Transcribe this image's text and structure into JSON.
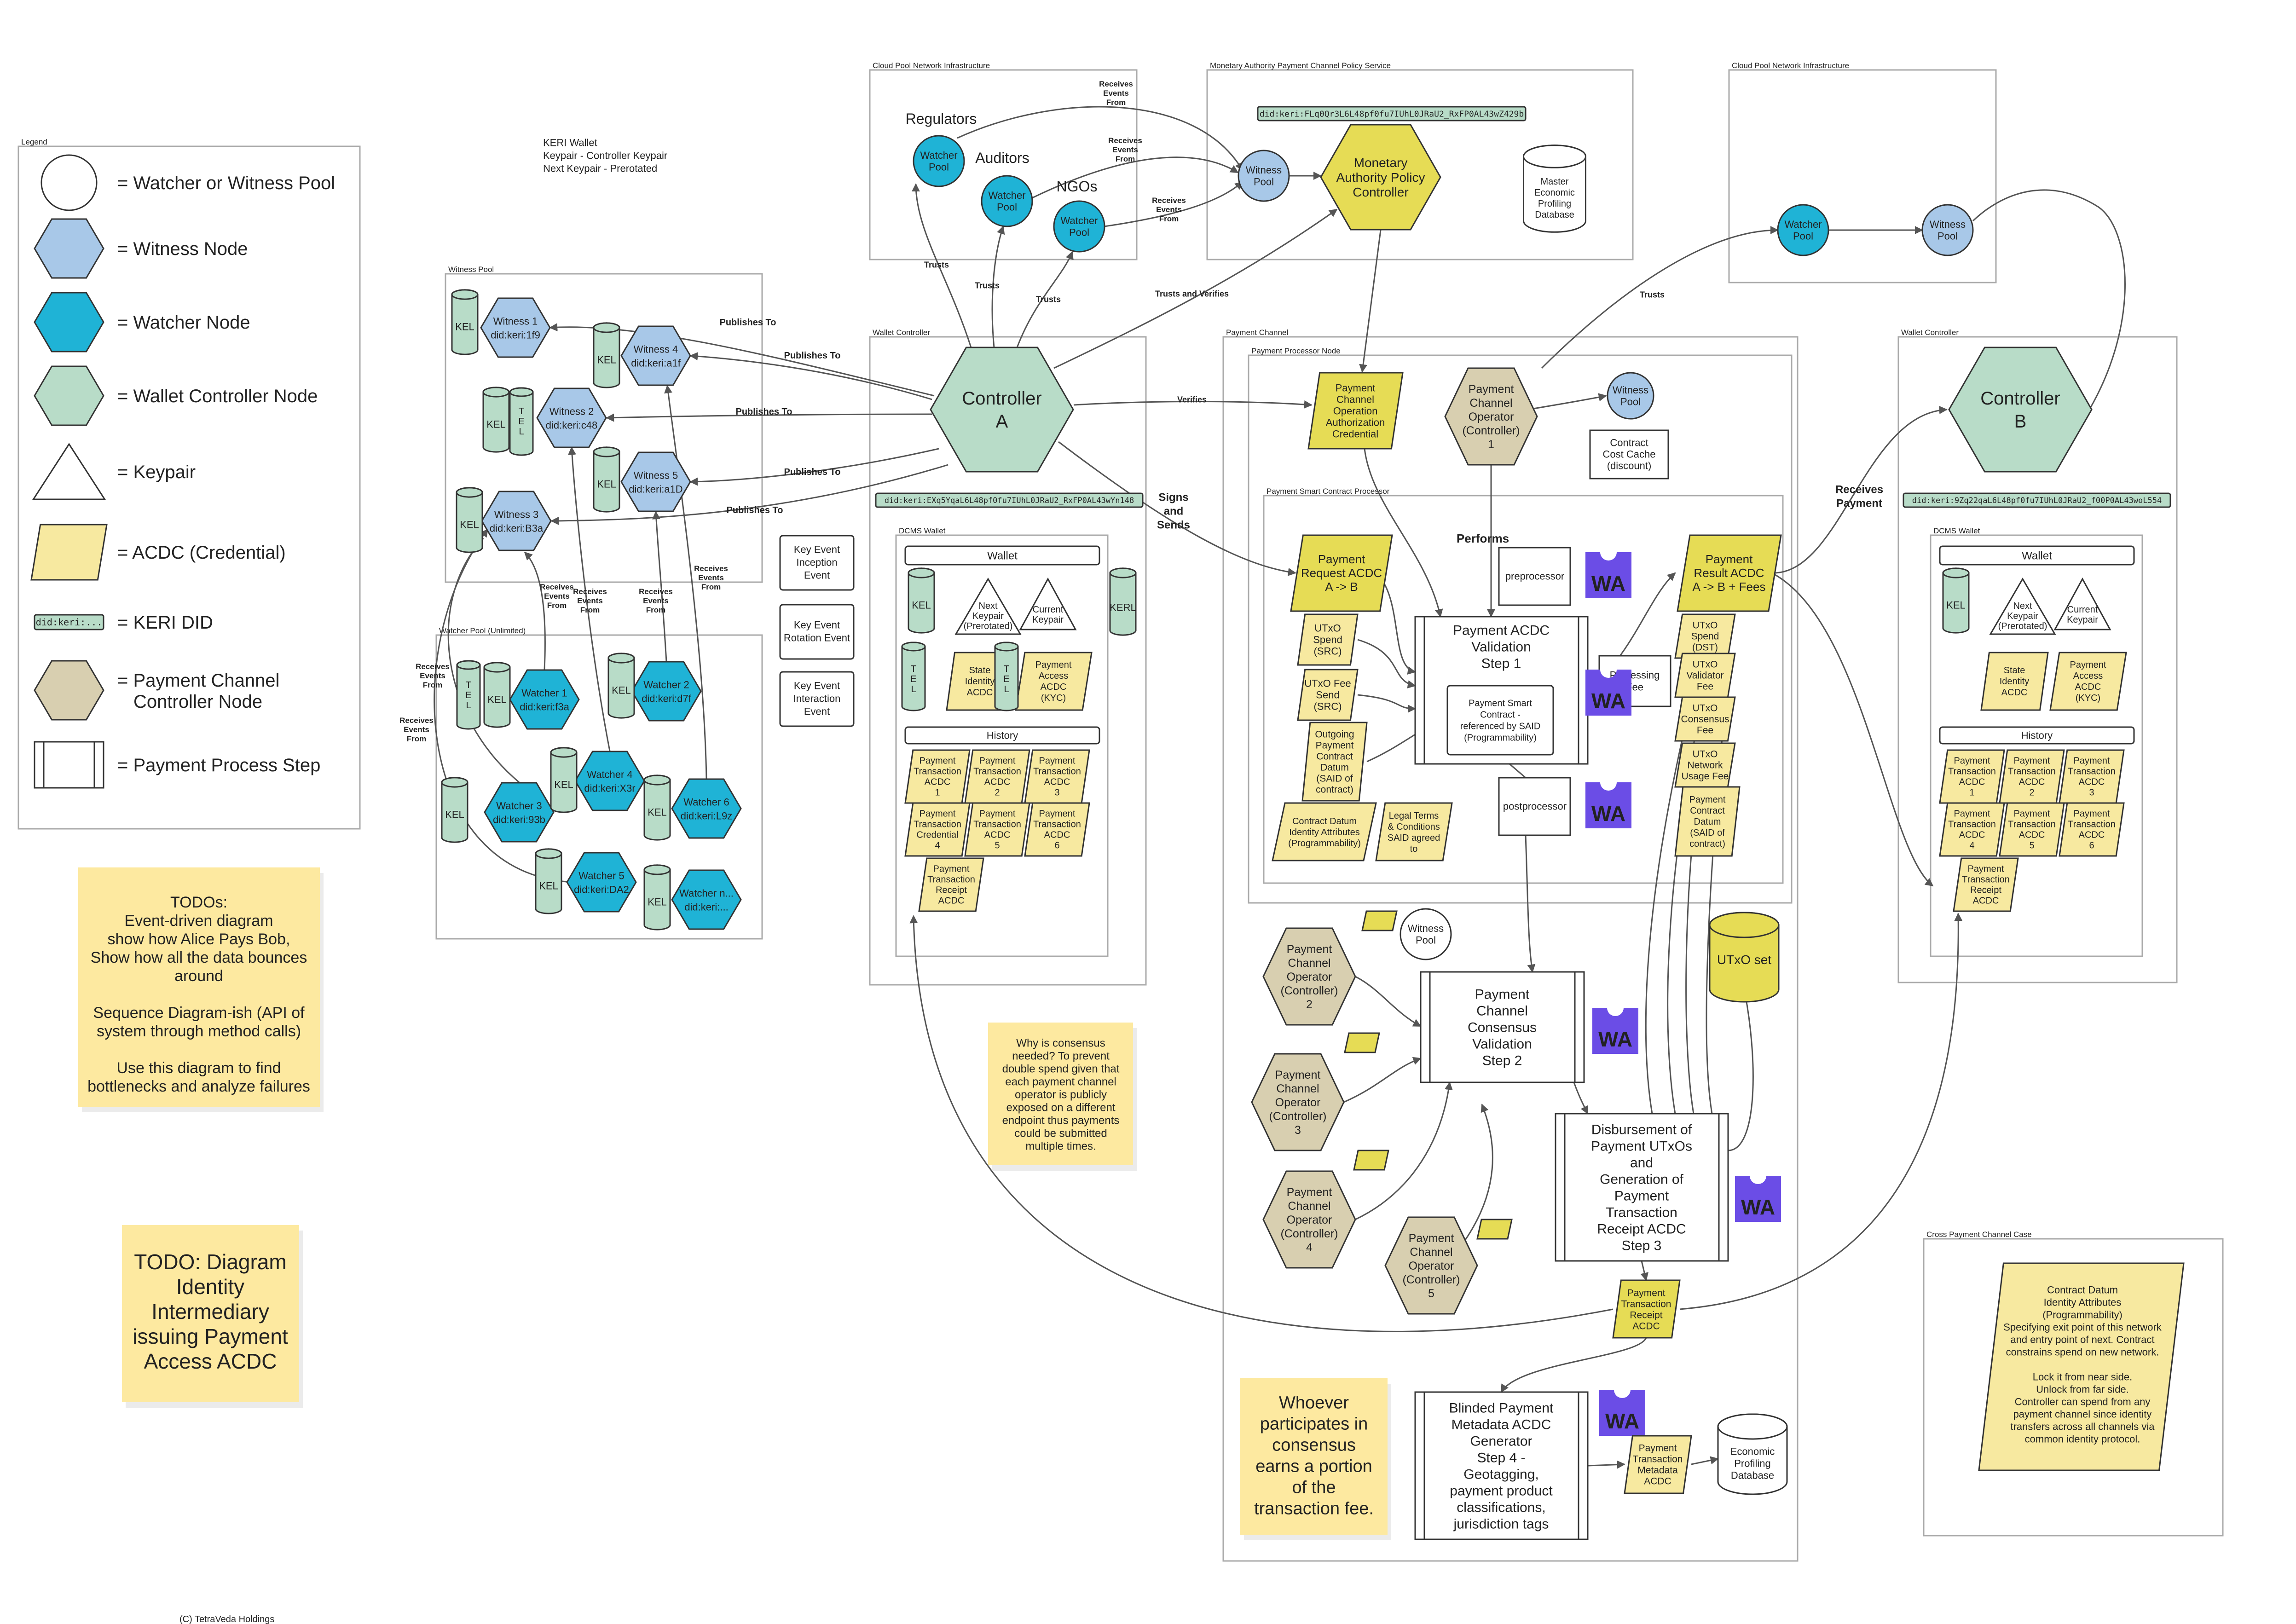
{
  "legend": {
    "title": "Legend",
    "items": [
      {
        "shape": "circle",
        "label": "= Watcher or Witness Pool"
      },
      {
        "shape": "hex-lightblue",
        "label": "= Witness Node"
      },
      {
        "shape": "hex-blue",
        "label": "= Watcher Node"
      },
      {
        "shape": "hex-green",
        "label": "= Wallet Controller Node"
      },
      {
        "shape": "triangle",
        "label": "= Keypair"
      },
      {
        "shape": "parallelogram",
        "label": "= ACDC (Credential)"
      },
      {
        "shape": "did",
        "label": "= KERI DID",
        "sample": "did:keri:..."
      },
      {
        "shape": "hex-tan",
        "label": "= Payment Channel",
        "label2": "Controller Node"
      },
      {
        "shape": "process",
        "label": "= Payment Process Step"
      }
    ]
  },
  "keri_wallet_note": [
    "KERI Wallet",
    "Keypair - Controller Keypair",
    "Next Keypair - Prerotated"
  ],
  "todo_notes": {
    "event_driven": [
      "TODOs:",
      "Event-driven diagram",
      "show how Alice Pays Bob,",
      "Show how all the data bounces",
      "around",
      "",
      "Sequence Diagram-ish (API of",
      "system through method calls)",
      "",
      "Use this diagram to find",
      "bottlenecks and analyze failures"
    ],
    "identity": [
      "TODO: Diagram",
      "Identity",
      "Intermediary",
      "issuing Payment",
      "Access ACDC"
    ],
    "consensus": [
      "Why is consensus",
      "needed? To prevent",
      "double spend given that",
      "each payment channel",
      "operator is publicly",
      "exposed on a different",
      "endpoint thus payments",
      "could be submitted",
      "multiple times."
    ],
    "whoever": [
      "Whoever",
      "participates in",
      "consensus",
      "earns a portion",
      "of the",
      "transaction fee."
    ]
  },
  "copyright": "(C) TetraVeda Holdings",
  "containers": {
    "witness_pool": "Witness Pool",
    "watcher_pool": "Watcher Pool (Unlimited)",
    "cloud_pool_left": "Cloud Pool Network Infrastructure",
    "monetary_authority": "Monetary Authority Payment Channel Policy Service",
    "cloud_pool_right": "Cloud Pool Network Infrastructure",
    "wallet_controller_a": "Wallet Controller",
    "dcms_wallet_a": "DCMS Wallet",
    "payment_channel": "Payment Channel",
    "payment_processor_node": "Payment Processor Node",
    "smart_contract_processor": "Payment Smart Contract Processor",
    "wallet_controller_b": "Wallet Controller",
    "dcms_wallet_b": "DCMS Wallet",
    "cross_payment": "Cross Payment Channel Case"
  },
  "witnesses": [
    {
      "name": "Witness 1",
      "did": "did:keri:1f9"
    },
    {
      "name": "Witness 4",
      "did": "did:keri:a1f"
    },
    {
      "name": "Witness 2",
      "did": "did:keri:c48"
    },
    {
      "name": "Witness 5",
      "did": "did:keri:a1D"
    },
    {
      "name": "Witness 3",
      "did": "did:keri:B3a"
    }
  ],
  "watchers": [
    {
      "name": "Watcher 1",
      "did": "did:keri:f3a"
    },
    {
      "name": "Watcher 2",
      "did": "did:keri:d7f"
    },
    {
      "name": "Watcher 4",
      "did": "did:keri:X3r"
    },
    {
      "name": "Watcher 6",
      "did": "did:keri:L9z"
    },
    {
      "name": "Watcher 3",
      "did": "did:keri:93b"
    },
    {
      "name": "Watcher 5",
      "did": "did:keri:DA2"
    },
    {
      "name": "Watcher n...",
      "did": "did:keri:..."
    }
  ],
  "cloud_left": {
    "regulators": "Regulators",
    "auditors": "Auditors",
    "ngos": "NGOs",
    "watcher_pool": [
      "Watcher",
      "Pool"
    ]
  },
  "monetary": {
    "did": "did:keri:FLq0Qr3L6L48pf0fu7IUhL0JRaU2_RxFP0AL43wZ429b",
    "witness_pool": [
      "Witness",
      "Pool"
    ],
    "controller": [
      "Monetary",
      "Authority Policy",
      "Controller"
    ],
    "database": [
      "Master",
      "Economic",
      "Profiling",
      "Database"
    ]
  },
  "cloud_right": {
    "watcher_pool": [
      "Watcher",
      "Pool"
    ],
    "witness_pool": [
      "Witness",
      "Pool"
    ]
  },
  "controller_a": {
    "label": [
      "Controller",
      "A"
    ],
    "did": "did:keri:EXq5YqaL6L48pf0fu7IUhL0JRaU2_RxFP0AL43wYn148"
  },
  "controller_b": {
    "label": [
      "Controller",
      "B"
    ],
    "did": "did:keri:9Zq22qaL6L48pf0fu7IUhL0JRaU2_f00P0AL43woL554"
  },
  "events": [
    [
      "Key Event",
      "Inception",
      "Event"
    ],
    [
      "Key Event",
      "Rotation Event"
    ],
    [
      "Key Event",
      "Interaction",
      "Event"
    ]
  ],
  "wallet": {
    "title": "Wallet",
    "kel": "KEL",
    "kerl": "KERL",
    "tel": [
      "T",
      "E",
      "L"
    ],
    "next_keypair": [
      "Next",
      "Keypair",
      "(Prerotated)"
    ],
    "current_keypair": [
      "Current",
      "Keypair"
    ],
    "state_identity": [
      "State",
      "Identity",
      "ACDC"
    ],
    "payment_access": [
      "Payment",
      "Access",
      "ACDC",
      "(KYC)"
    ],
    "history": "History",
    "history_items": [
      [
        "Payment",
        "Transaction",
        "ACDC",
        "1"
      ],
      [
        "Payment",
        "Transaction",
        "ACDC",
        "2"
      ],
      [
        "Payment",
        "Transaction",
        "ACDC",
        "3"
      ],
      [
        "Payment",
        "Transaction",
        "Credential",
        "4"
      ],
      [
        "Payment",
        "Transaction",
        "ACDC",
        "5"
      ],
      [
        "Payment",
        "Transaction",
        "ACDC",
        "6"
      ],
      [
        "Payment",
        "Transaction",
        "Receipt",
        "ACDC"
      ]
    ],
    "history_items_b": [
      [
        "Payment",
        "Transaction",
        "ACDC",
        "1"
      ],
      [
        "Payment",
        "Transaction",
        "ACDC",
        "2"
      ],
      [
        "Payment",
        "Transaction",
        "ACDC",
        "3"
      ],
      [
        "Payment",
        "Transaction",
        "ACDC",
        "4"
      ],
      [
        "Payment",
        "Transaction",
        "ACDC",
        "5"
      ],
      [
        "Payment",
        "Transaction",
        "ACDC",
        "6"
      ],
      [
        "Payment",
        "Transaction",
        "Receipt",
        "ACDC"
      ]
    ]
  },
  "processor": {
    "authorization": [
      "Payment",
      "Channel",
      "Operation",
      "Authorization",
      "Credential"
    ],
    "operator1": [
      "Payment",
      "Channel",
      "Operator",
      "(Controller)",
      "1"
    ],
    "witness_pool": [
      "Witness",
      "Pool"
    ],
    "cost_cache": [
      "Contract",
      "Cost Cache",
      "(discount)"
    ],
    "performs": "Performs",
    "request": [
      "Payment",
      "Request ACDC",
      "A -> B"
    ],
    "src_spend": [
      "UTxO",
      "Spend",
      "(SRC)"
    ],
    "src_fee": [
      "UTxO Fee",
      "Send",
      "(SRC)"
    ],
    "outgoing": [
      "Outgoing",
      "Payment",
      "Contract",
      "Datum",
      "(SAID of",
      "contract)"
    ],
    "datum_identity": [
      "Contract Datum",
      "Identity Attributes",
      "(Programmability)"
    ],
    "legal": [
      "Legal Terms",
      "& Conditions",
      "SAID agreed",
      "to"
    ],
    "preprocessor": "preprocessor",
    "postprocessor": "postprocessor",
    "validation": [
      "Payment ACDC",
      "Validation",
      "Step 1"
    ],
    "smart_contract": [
      "Payment Smart",
      "Contract -",
      "referenced by SAID",
      "(Programmability)"
    ],
    "processing": [
      "Processing",
      "Fee"
    ],
    "result": [
      "Payment",
      "Result ACDC",
      "A -> B + Fees"
    ],
    "dst_spend": [
      "UTxO",
      "Spend",
      "(DST)"
    ],
    "validator_fee": [
      "UTxO",
      "Validator",
      "Fee"
    ],
    "consensus_fee": [
      "UTxO",
      "Consensus",
      "Fee"
    ],
    "network_fee": [
      "UTxO",
      "Network",
      "Usage Fee"
    ],
    "payment_datum": [
      "Payment",
      "Contract",
      "Datum",
      "(SAID of",
      "contract)"
    ],
    "wa": "WA"
  },
  "consensus": {
    "operators": [
      [
        "Payment",
        "Channel",
        "Operator",
        "(Controller)",
        "2"
      ],
      [
        "Payment",
        "Channel",
        "Operator",
        "(Controller)",
        "3"
      ],
      [
        "Payment",
        "Channel",
        "Operator",
        "(Controller)",
        "4"
      ],
      [
        "Payment",
        "Channel",
        "Operator",
        "(Controller)",
        "5"
      ]
    ],
    "witness_pool": [
      "Witness",
      "Pool"
    ],
    "validation": [
      "Payment",
      "Channel",
      "Consensus",
      "Validation",
      "Step 2"
    ],
    "utxo_set": "UTxO set",
    "disbursement": [
      "Disbursement of",
      "Payment UTxOs",
      "and",
      "Generation of",
      "Payment",
      "Transaction",
      "Receipt ACDC",
      "Step 3"
    ],
    "receipt": [
      "Payment",
      "Transaction",
      "Receipt",
      "ACDC"
    ],
    "blinded": [
      "Blinded Payment",
      "Metadata ACDC",
      "Generator",
      "Step 4 -",
      "Geotagging,",
      "payment product",
      "classifications,",
      "jurisdiction tags"
    ],
    "metadata": [
      "Payment",
      "Transaction",
      "Metadata",
      "ACDC"
    ],
    "economic_db": [
      "Economic",
      "Profiling",
      "Database"
    ]
  },
  "cross": [
    "Contract Datum",
    "Identity Attributes",
    "(Programmability)",
    "Specifying exit point of this network",
    "and entry point of next. Contract",
    "constrains spend on new network.",
    "",
    "Lock it from near side.",
    "Unlock from far side.",
    "Controller can spend from any",
    "payment channel since identity",
    "transfers across all channels via",
    "common identity protocol."
  ],
  "edge_labels": {
    "publishes_to": "Publishes To",
    "receives_events_from": [
      "Receives",
      "Events",
      "From"
    ],
    "trusts": "Trusts",
    "trusts_and_verifies": "Trusts and Verifies",
    "verifies": "Verifies",
    "signs_and_sends": [
      "Signs",
      "and",
      "Sends"
    ],
    "receives_payment": [
      "Receives",
      "Payment"
    ]
  }
}
